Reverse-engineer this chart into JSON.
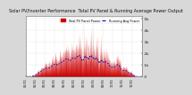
{
  "title": "Solar PV/Inverter Performance  Total PV Panel & Running Average Power Output",
  "bg_color": "#d8d8d8",
  "plot_bg": "#ffffff",
  "grid_color": "#b0b0b0",
  "bar_color": "#cc0000",
  "avg_line_color": "#0000cc",
  "ylim": [
    0,
    5200
  ],
  "yticks": [
    0,
    1000,
    2000,
    3000,
    4000,
    5000
  ],
  "ytick_labels": [
    "  0",
    "  1k",
    "  2k",
    "  3k",
    "  4k",
    "  5k"
  ],
  "num_points": 2920,
  "legend_labels": [
    "Total PV Panel Power",
    "Running Avg Power"
  ],
  "legend_colors": [
    "#cc0000",
    "#0000cc"
  ],
  "title_fontsize": 3.5,
  "tick_fontsize": 3.0
}
